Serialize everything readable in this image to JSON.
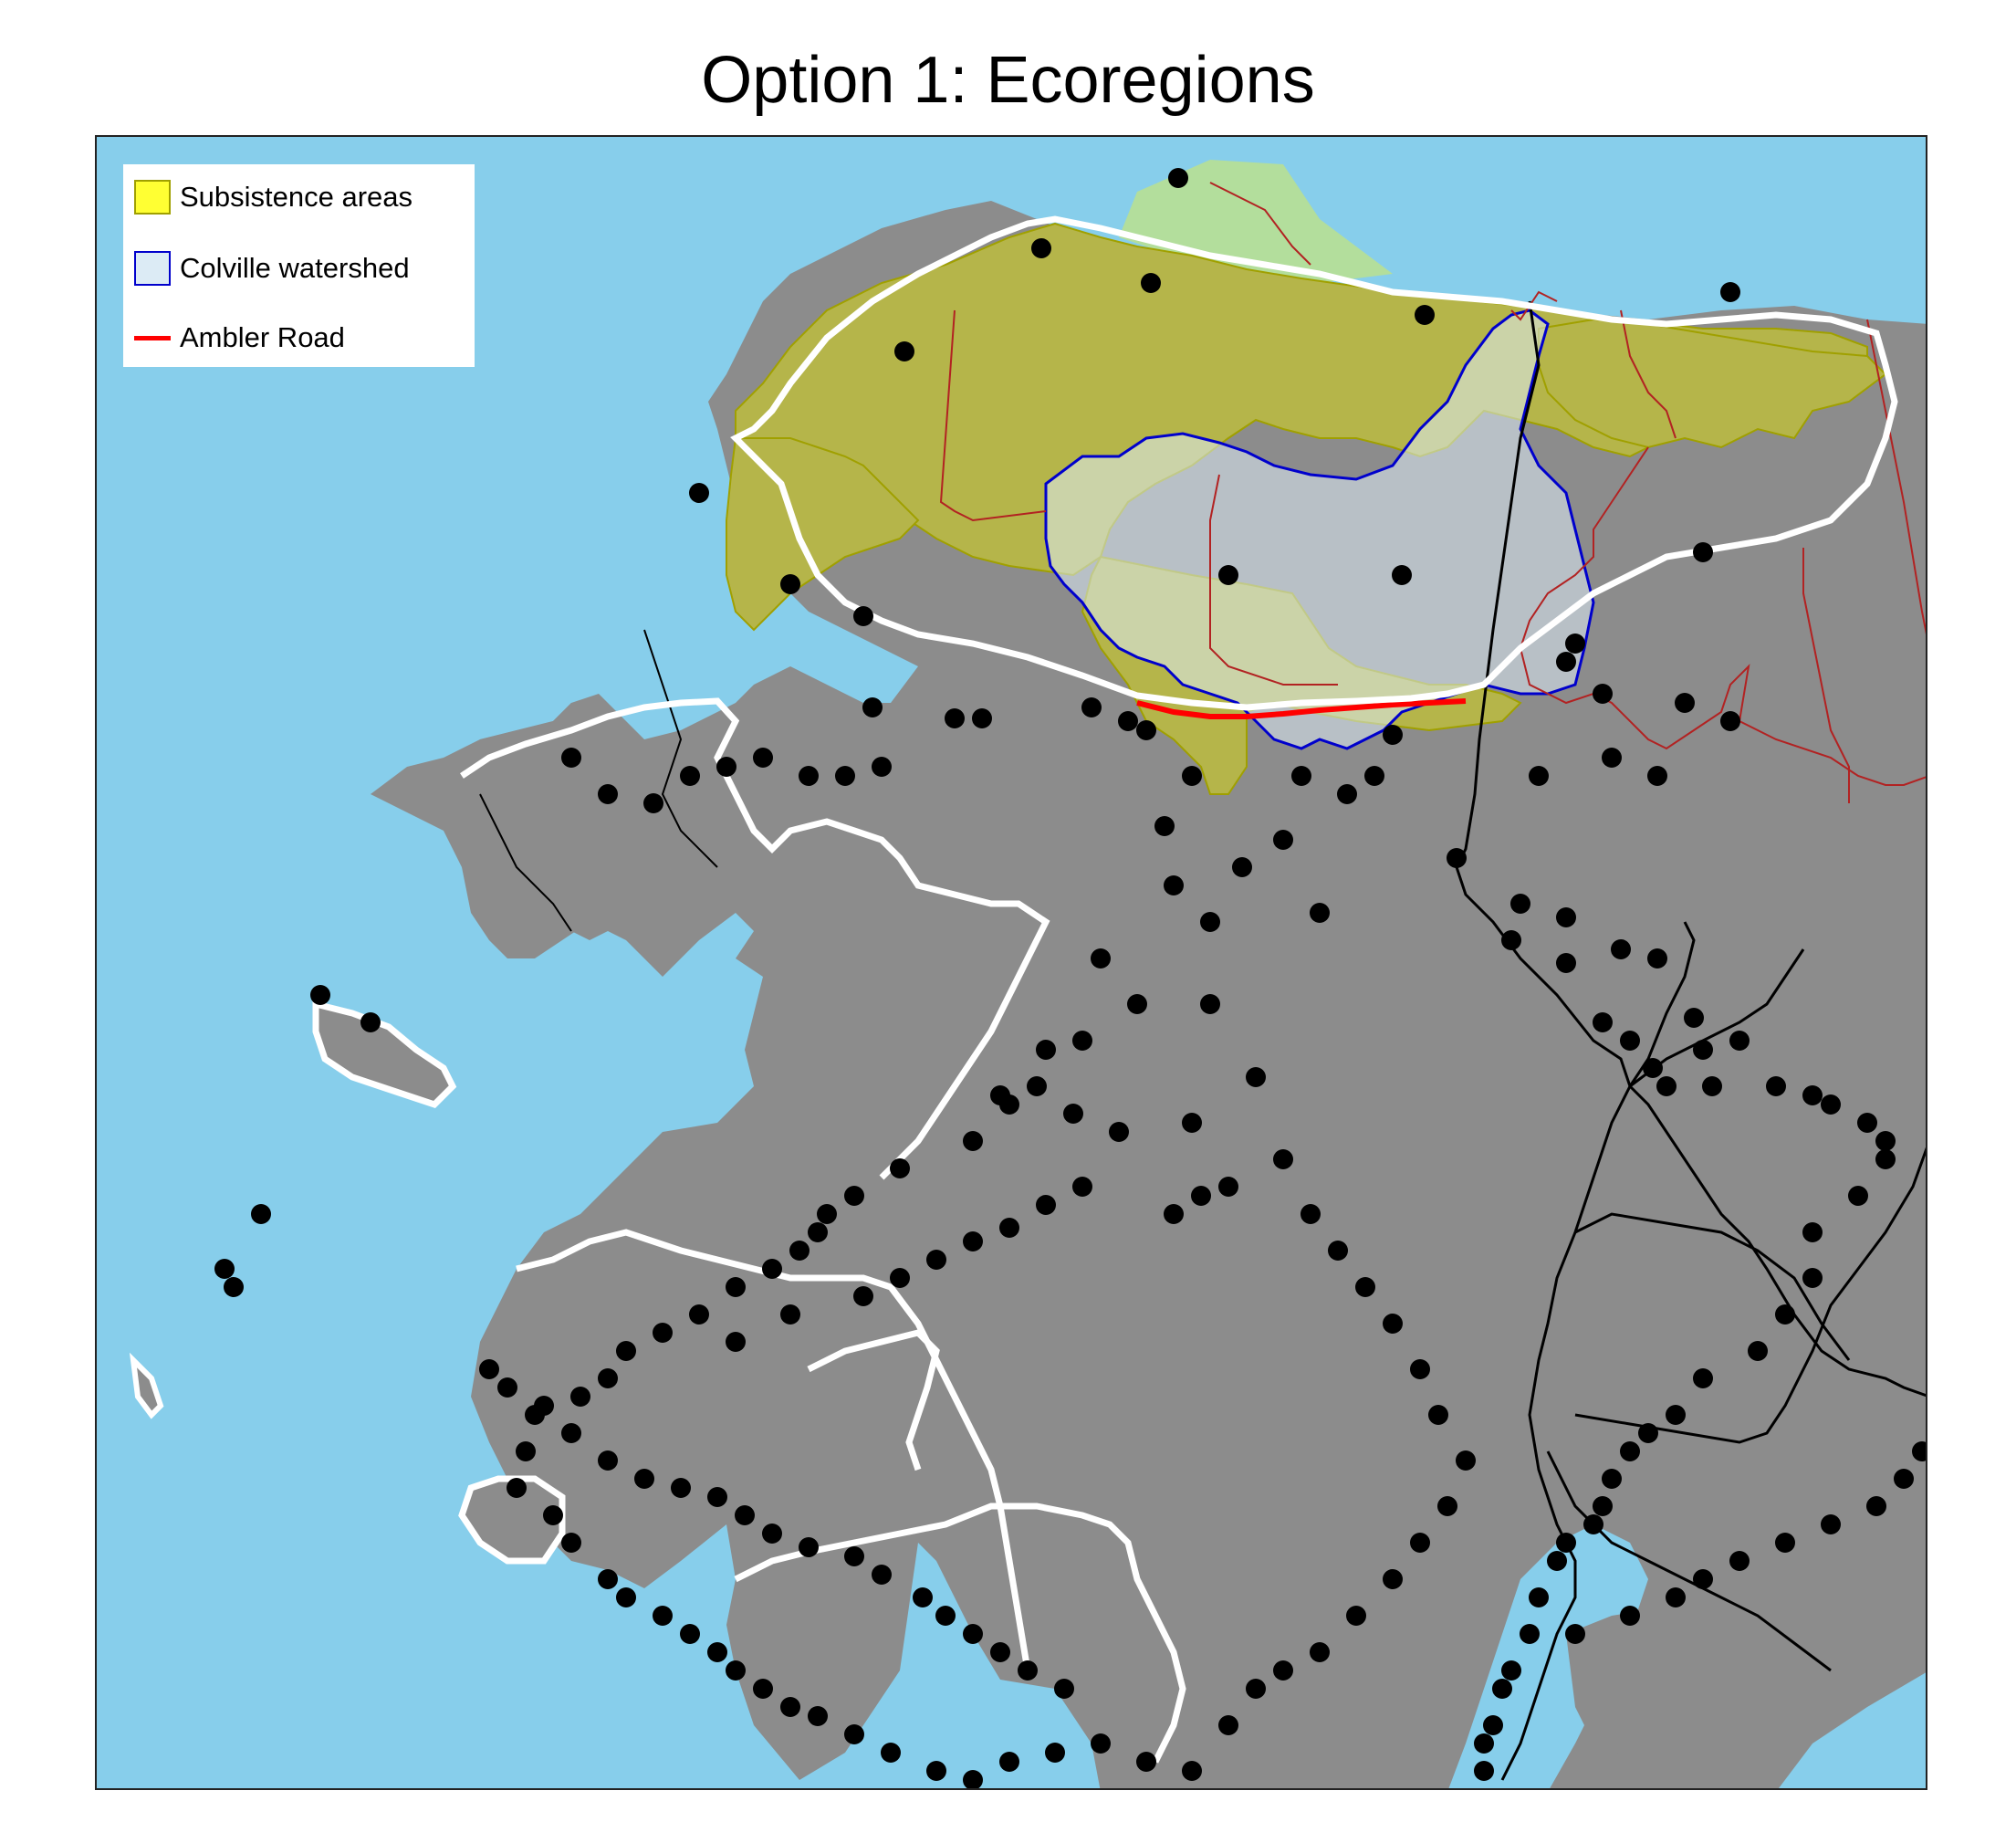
{
  "title": "Option 1: Ecoregions",
  "legend": {
    "items": [
      {
        "label": "Subsistence areas",
        "symbol": "fill",
        "fill": "#ffff33",
        "stroke": "#a0a000"
      },
      {
        "label": "Colville watershed",
        "symbol": "fill",
        "fill": "#dcebf5",
        "stroke": "#0000cc"
      },
      {
        "label": "Ambler Road",
        "symbol": "line",
        "stroke": "#ff0000"
      }
    ]
  },
  "colors": {
    "ocean": "#87ceeb",
    "land": "#8c8c8c",
    "land_dark": "#4d4d4d",
    "subsistence": "#b5b54a",
    "watershed": "#9fb3c4",
    "ecoregion_boundary": "#ffffff",
    "admin_boundary": "#b22222",
    "road": "#000000",
    "ambler_road": "#ff0000",
    "community": "#000000",
    "coastal_plain_green": "#b8e094"
  }
}
